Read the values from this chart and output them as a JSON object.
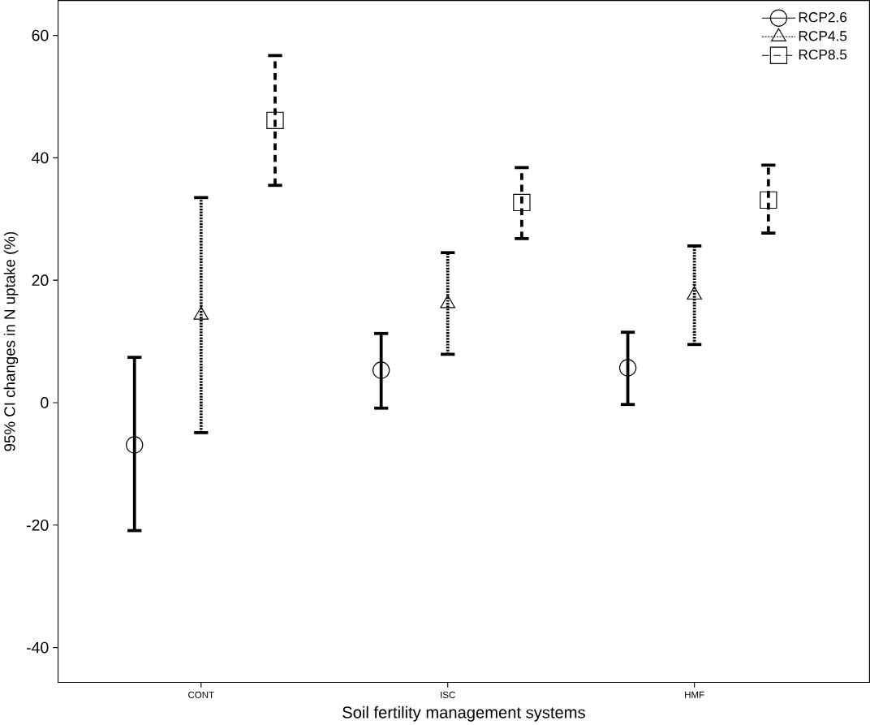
{
  "chart_data": {
    "type": "scatter",
    "categories": [
      "CONT",
      "ISC",
      "HMF"
    ],
    "xlabel": "Soil fertility management systems",
    "ylabel": "95% CI changes in N uptake (%)",
    "ylim": [
      -45.7,
      65.7
    ],
    "yticks": [
      -40,
      -20,
      0,
      20,
      40,
      60
    ],
    "legend": "top right",
    "series": [
      {
        "name": "RCP2.6",
        "color": "#000000",
        "marker": "circle",
        "line_style": "solid",
        "values": [
          -6.9,
          5.3,
          5.7
        ],
        "errors": [
          [
            -20.9,
            7.4
          ],
          [
            -0.9,
            11.3
          ],
          [
            -0.3,
            11.5
          ]
        ]
      },
      {
        "name": "RCP4.5",
        "color": "#000000",
        "marker": "triangle",
        "line_style": "dotted",
        "values": [
          14.3,
          16.2,
          17.6
        ],
        "errors": [
          [
            -4.9,
            33.5
          ],
          [
            7.9,
            24.5
          ],
          [
            9.5,
            25.6
          ]
        ]
      },
      {
        "name": "RCP8.5",
        "color": "#000000",
        "marker": "square",
        "line_style": "dashed",
        "values": [
          46.1,
          32.7,
          33.1
        ],
        "errors": [
          [
            35.5,
            56.7
          ],
          [
            26.8,
            38.4
          ],
          [
            27.7,
            38.8
          ]
        ]
      }
    ]
  }
}
